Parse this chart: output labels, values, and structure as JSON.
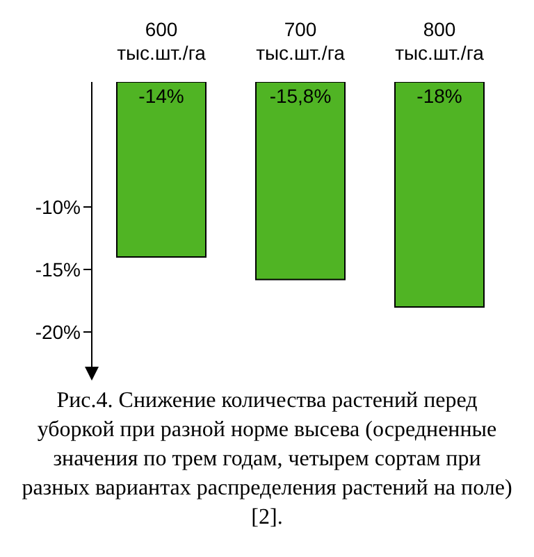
{
  "chart_data": {
    "type": "bar",
    "categories": [
      "600\nтыс.шт./га",
      "700\nтыс.шт./га",
      "800\nтыс.шт./га"
    ],
    "values": [
      -14,
      -15.8,
      -18
    ],
    "value_labels": [
      "-14%",
      "-15,8%",
      "-18%"
    ],
    "color": "#50b424",
    "ylim": [
      -23,
      0
    ],
    "yticks": [
      {
        "value": -10,
        "label": "-10%"
      },
      {
        "value": -15,
        "label": "-15%"
      },
      {
        "value": -20,
        "label": "-20%"
      }
    ],
    "annotations": [
      "Рис.4. Снижение количества растений перед уборкой при разной норме высева (осредненные значения по трем годам, четырем сортам при разных вариантах распределения растений на поле) [2]."
    ]
  }
}
